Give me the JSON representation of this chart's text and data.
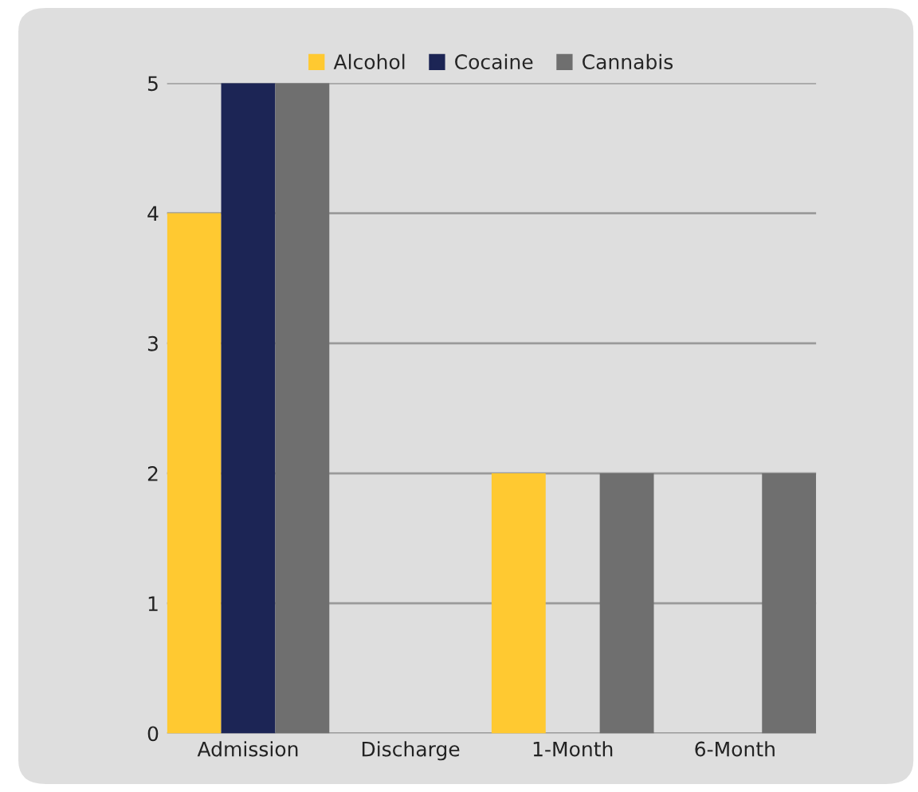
{
  "chart_data": {
    "type": "bar",
    "categories": [
      "Admission",
      "Discharge",
      "1-Month",
      "6-Month"
    ],
    "series": [
      {
        "name": "Alcohol",
        "color": "#ffc931",
        "values": [
          4,
          0,
          2,
          0
        ]
      },
      {
        "name": "Cocaine",
        "color": "#1c2555",
        "values": [
          5,
          0,
          0,
          0
        ]
      },
      {
        "name": "Cannabis",
        "color": "#6f6f6f",
        "values": [
          5,
          0,
          2,
          2
        ]
      }
    ],
    "ylim": [
      0,
      5
    ],
    "yticks": [
      0,
      1,
      2,
      3,
      4,
      5
    ],
    "grid": "y",
    "legend": "top"
  }
}
